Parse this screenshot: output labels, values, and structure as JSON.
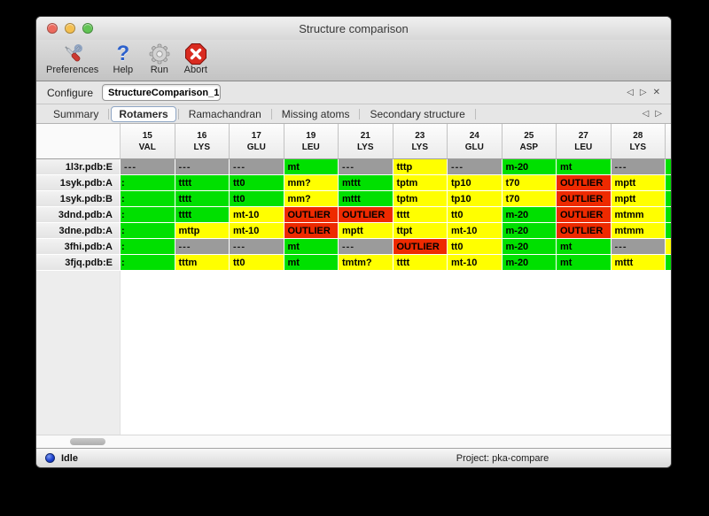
{
  "window": {
    "title": "Structure comparison"
  },
  "toolbar": {
    "items": [
      {
        "label": "Preferences",
        "icon": "preferences-tools-icon"
      },
      {
        "label": "Help",
        "icon": "help-question-icon"
      },
      {
        "label": "Run",
        "icon": "run-gear-icon"
      },
      {
        "label": "Abort",
        "icon": "abort-stop-icon"
      }
    ]
  },
  "configure": {
    "label": "Configure",
    "value": "StructureComparison_1",
    "nav": {
      "back": "◁",
      "forward": "▷",
      "close": "✕"
    }
  },
  "tabs": {
    "items": [
      "Summary",
      "Rotamers",
      "Ramachandran",
      "Missing atoms",
      "Secondary structure"
    ],
    "selected": "Rotamers",
    "nav": {
      "back": "◁",
      "forward": "▷"
    }
  },
  "colors": {
    "green": "#00e000",
    "yellow": "#ffff00",
    "red": "#ee2a00",
    "gray": "#9b9b9b"
  },
  "table": {
    "columns": [
      {
        "num": "15",
        "res": "VAL"
      },
      {
        "num": "16",
        "res": "LYS"
      },
      {
        "num": "17",
        "res": "GLU"
      },
      {
        "num": "19",
        "res": "LEU"
      },
      {
        "num": "21",
        "res": "LYS"
      },
      {
        "num": "23",
        "res": "LYS"
      },
      {
        "num": "24",
        "res": "GLU"
      },
      {
        "num": "25",
        "res": "ASP"
      },
      {
        "num": "27",
        "res": "LEU"
      },
      {
        "num": "28",
        "res": "LYS"
      }
    ],
    "rows": [
      {
        "label": "1l3r.pdb:E",
        "partial": "green",
        "cells": [
          {
            "text": "---",
            "color": "gray"
          },
          {
            "text": "---",
            "color": "gray"
          },
          {
            "text": "---",
            "color": "gray"
          },
          {
            "text": "mt",
            "color": "green"
          },
          {
            "text": "---",
            "color": "gray"
          },
          {
            "text": "tttp",
            "color": "yellow"
          },
          {
            "text": "---",
            "color": "gray"
          },
          {
            "text": "m-20",
            "color": "green"
          },
          {
            "text": "mt",
            "color": "green"
          },
          {
            "text": "---",
            "color": "gray"
          }
        ]
      },
      {
        "label": "1syk.pdb:A",
        "partial": "green",
        "cells": [
          {
            "text": ":",
            "color": "green"
          },
          {
            "text": "tttt",
            "color": "green"
          },
          {
            "text": "tt0",
            "color": "green"
          },
          {
            "text": "mm?",
            "color": "yellow"
          },
          {
            "text": "mttt",
            "color": "green"
          },
          {
            "text": "tptm",
            "color": "yellow"
          },
          {
            "text": "tp10",
            "color": "yellow"
          },
          {
            "text": "t70",
            "color": "yellow"
          },
          {
            "text": "OUTLIER",
            "color": "red"
          },
          {
            "text": "mptt",
            "color": "yellow"
          }
        ]
      },
      {
        "label": "1syk.pdb:B",
        "partial": "green",
        "cells": [
          {
            "text": ":",
            "color": "green"
          },
          {
            "text": "tttt",
            "color": "green"
          },
          {
            "text": "tt0",
            "color": "green"
          },
          {
            "text": "mm?",
            "color": "yellow"
          },
          {
            "text": "mttt",
            "color": "green"
          },
          {
            "text": "tptm",
            "color": "yellow"
          },
          {
            "text": "tp10",
            "color": "yellow"
          },
          {
            "text": "t70",
            "color": "yellow"
          },
          {
            "text": "OUTLIER",
            "color": "red"
          },
          {
            "text": "mptt",
            "color": "yellow"
          }
        ]
      },
      {
        "label": "3dnd.pdb:A",
        "partial": "green",
        "cells": [
          {
            "text": ":",
            "color": "green"
          },
          {
            "text": "tttt",
            "color": "green"
          },
          {
            "text": "mt-10",
            "color": "yellow"
          },
          {
            "text": "OUTLIER",
            "color": "red"
          },
          {
            "text": "OUTLIER",
            "color": "red"
          },
          {
            "text": "tttt",
            "color": "yellow"
          },
          {
            "text": "tt0",
            "color": "yellow"
          },
          {
            "text": "m-20",
            "color": "green"
          },
          {
            "text": "OUTLIER",
            "color": "red"
          },
          {
            "text": "mtmm",
            "color": "yellow"
          }
        ]
      },
      {
        "label": "3dne.pdb:A",
        "partial": "green",
        "cells": [
          {
            "text": ":",
            "color": "green"
          },
          {
            "text": "mttp",
            "color": "yellow"
          },
          {
            "text": "mt-10",
            "color": "yellow"
          },
          {
            "text": "OUTLIER",
            "color": "red"
          },
          {
            "text": "mptt",
            "color": "yellow"
          },
          {
            "text": "ttpt",
            "color": "yellow"
          },
          {
            "text": "mt-10",
            "color": "yellow"
          },
          {
            "text": "m-20",
            "color": "green"
          },
          {
            "text": "OUTLIER",
            "color": "red"
          },
          {
            "text": "mtmm",
            "color": "yellow"
          }
        ]
      },
      {
        "label": "3fhi.pdb:A",
        "partial": "yellow",
        "cells": [
          {
            "text": ":",
            "color": "green"
          },
          {
            "text": "---",
            "color": "gray"
          },
          {
            "text": "---",
            "color": "gray"
          },
          {
            "text": "mt",
            "color": "green"
          },
          {
            "text": "---",
            "color": "gray"
          },
          {
            "text": "OUTLIER",
            "color": "red"
          },
          {
            "text": "tt0",
            "color": "yellow"
          },
          {
            "text": "m-20",
            "color": "green"
          },
          {
            "text": "mt",
            "color": "green"
          },
          {
            "text": "---",
            "color": "gray"
          }
        ]
      },
      {
        "label": "3fjq.pdb:E",
        "partial": "green",
        "cells": [
          {
            "text": ":",
            "color": "green"
          },
          {
            "text": "tttm",
            "color": "yellow"
          },
          {
            "text": "tt0",
            "color": "yellow"
          },
          {
            "text": "mt",
            "color": "green"
          },
          {
            "text": "tmtm?",
            "color": "yellow"
          },
          {
            "text": "tttt",
            "color": "yellow"
          },
          {
            "text": "mt-10",
            "color": "yellow"
          },
          {
            "text": "m-20",
            "color": "green"
          },
          {
            "text": "mt",
            "color": "green"
          },
          {
            "text": "mttt",
            "color": "yellow"
          }
        ]
      }
    ]
  },
  "status": {
    "state": "Idle",
    "project": "Project: pka-compare"
  }
}
